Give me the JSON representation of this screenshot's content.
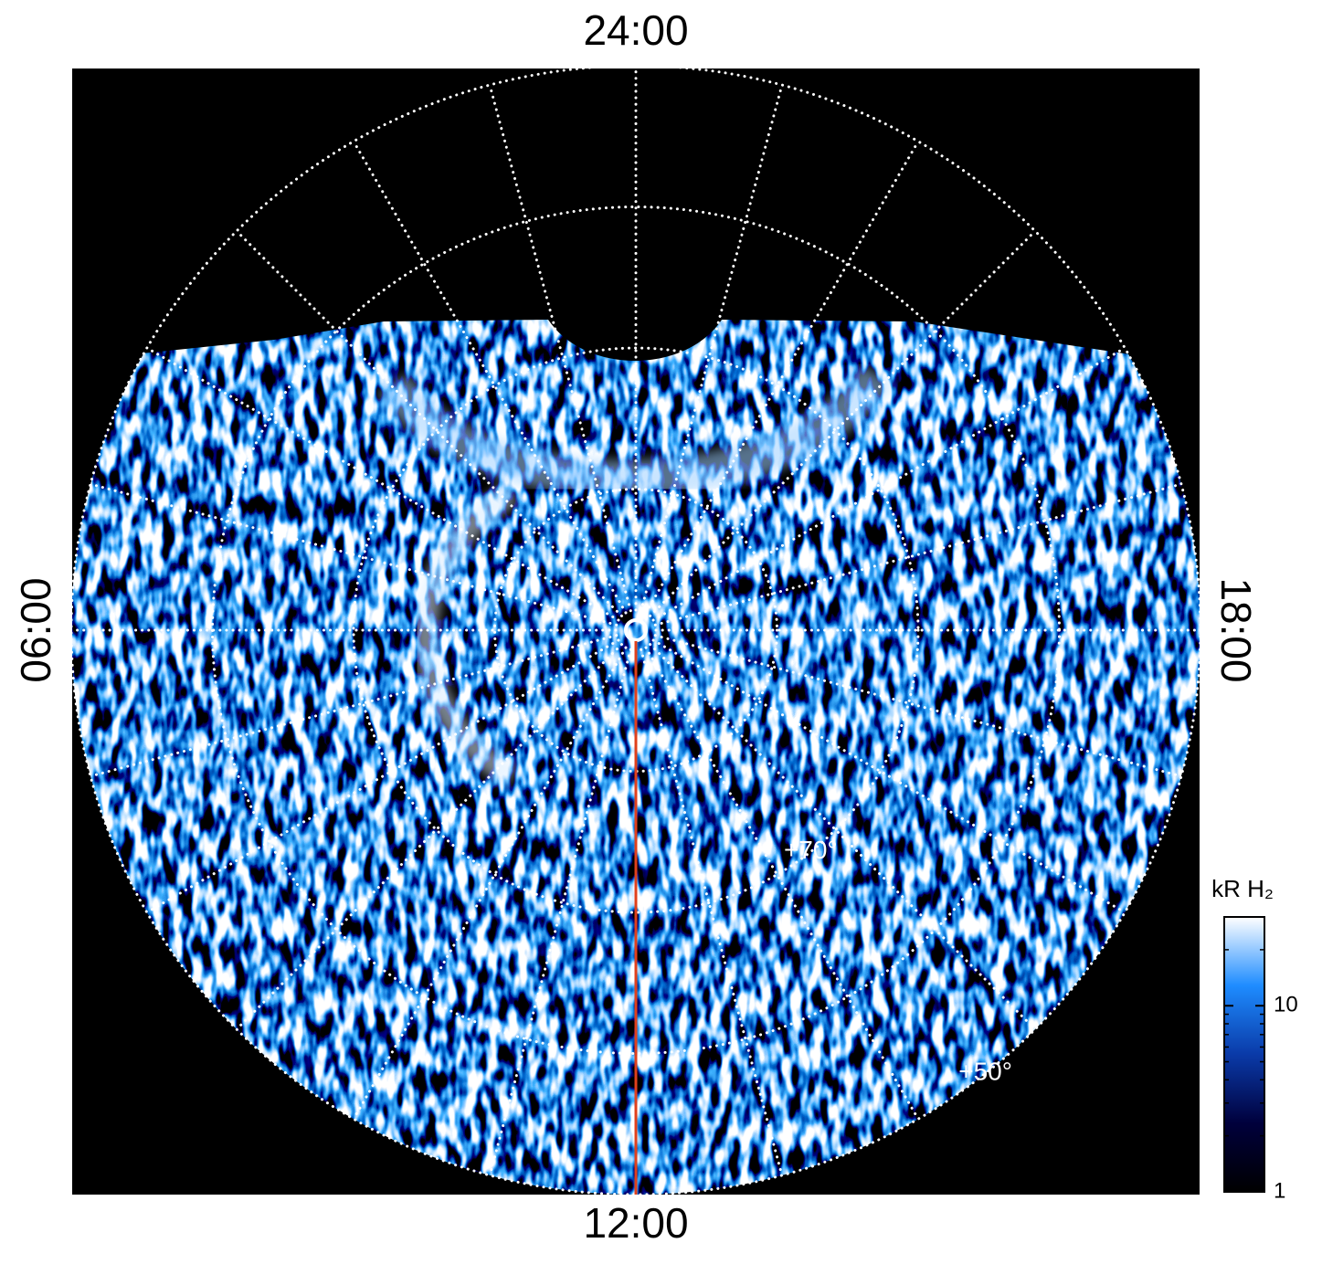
{
  "chart_data": {
    "type": "polar-map",
    "rlim": [
      90,
      50
    ],
    "latitude_rings": [
      50,
      60,
      70,
      80
    ],
    "latitude_labels": [
      {
        "value": 70,
        "label": "+70°"
      },
      {
        "value": 50,
        "label": "+50°"
      }
    ],
    "hour_grid": [
      0,
      1,
      2,
      3,
      4,
      5,
      6,
      7,
      8,
      9,
      10,
      11,
      12,
      13,
      14,
      15,
      16,
      17,
      18,
      19,
      20,
      21,
      22,
      23
    ],
    "hour_labels": [
      {
        "value": 0,
        "label": "24:00"
      },
      {
        "value": 6,
        "label": "06:00"
      },
      {
        "value": 12,
        "label": "12:00"
      },
      {
        "value": 18,
        "label": "18:00"
      }
    ],
    "highlight_hour": 12,
    "highlight_color": "#e0401c",
    "colorbar": {
      "label": "kR H₂",
      "scale": "log",
      "clim": [
        1,
        30
      ],
      "ticks": [
        1,
        10
      ],
      "minor_ticks": [
        2,
        3,
        4,
        5,
        6,
        7,
        8,
        9,
        20,
        30
      ],
      "colormap": [
        "#000000",
        "#00003c",
        "#0a3aa8",
        "#1e8cff",
        "#ffffff"
      ]
    }
  }
}
